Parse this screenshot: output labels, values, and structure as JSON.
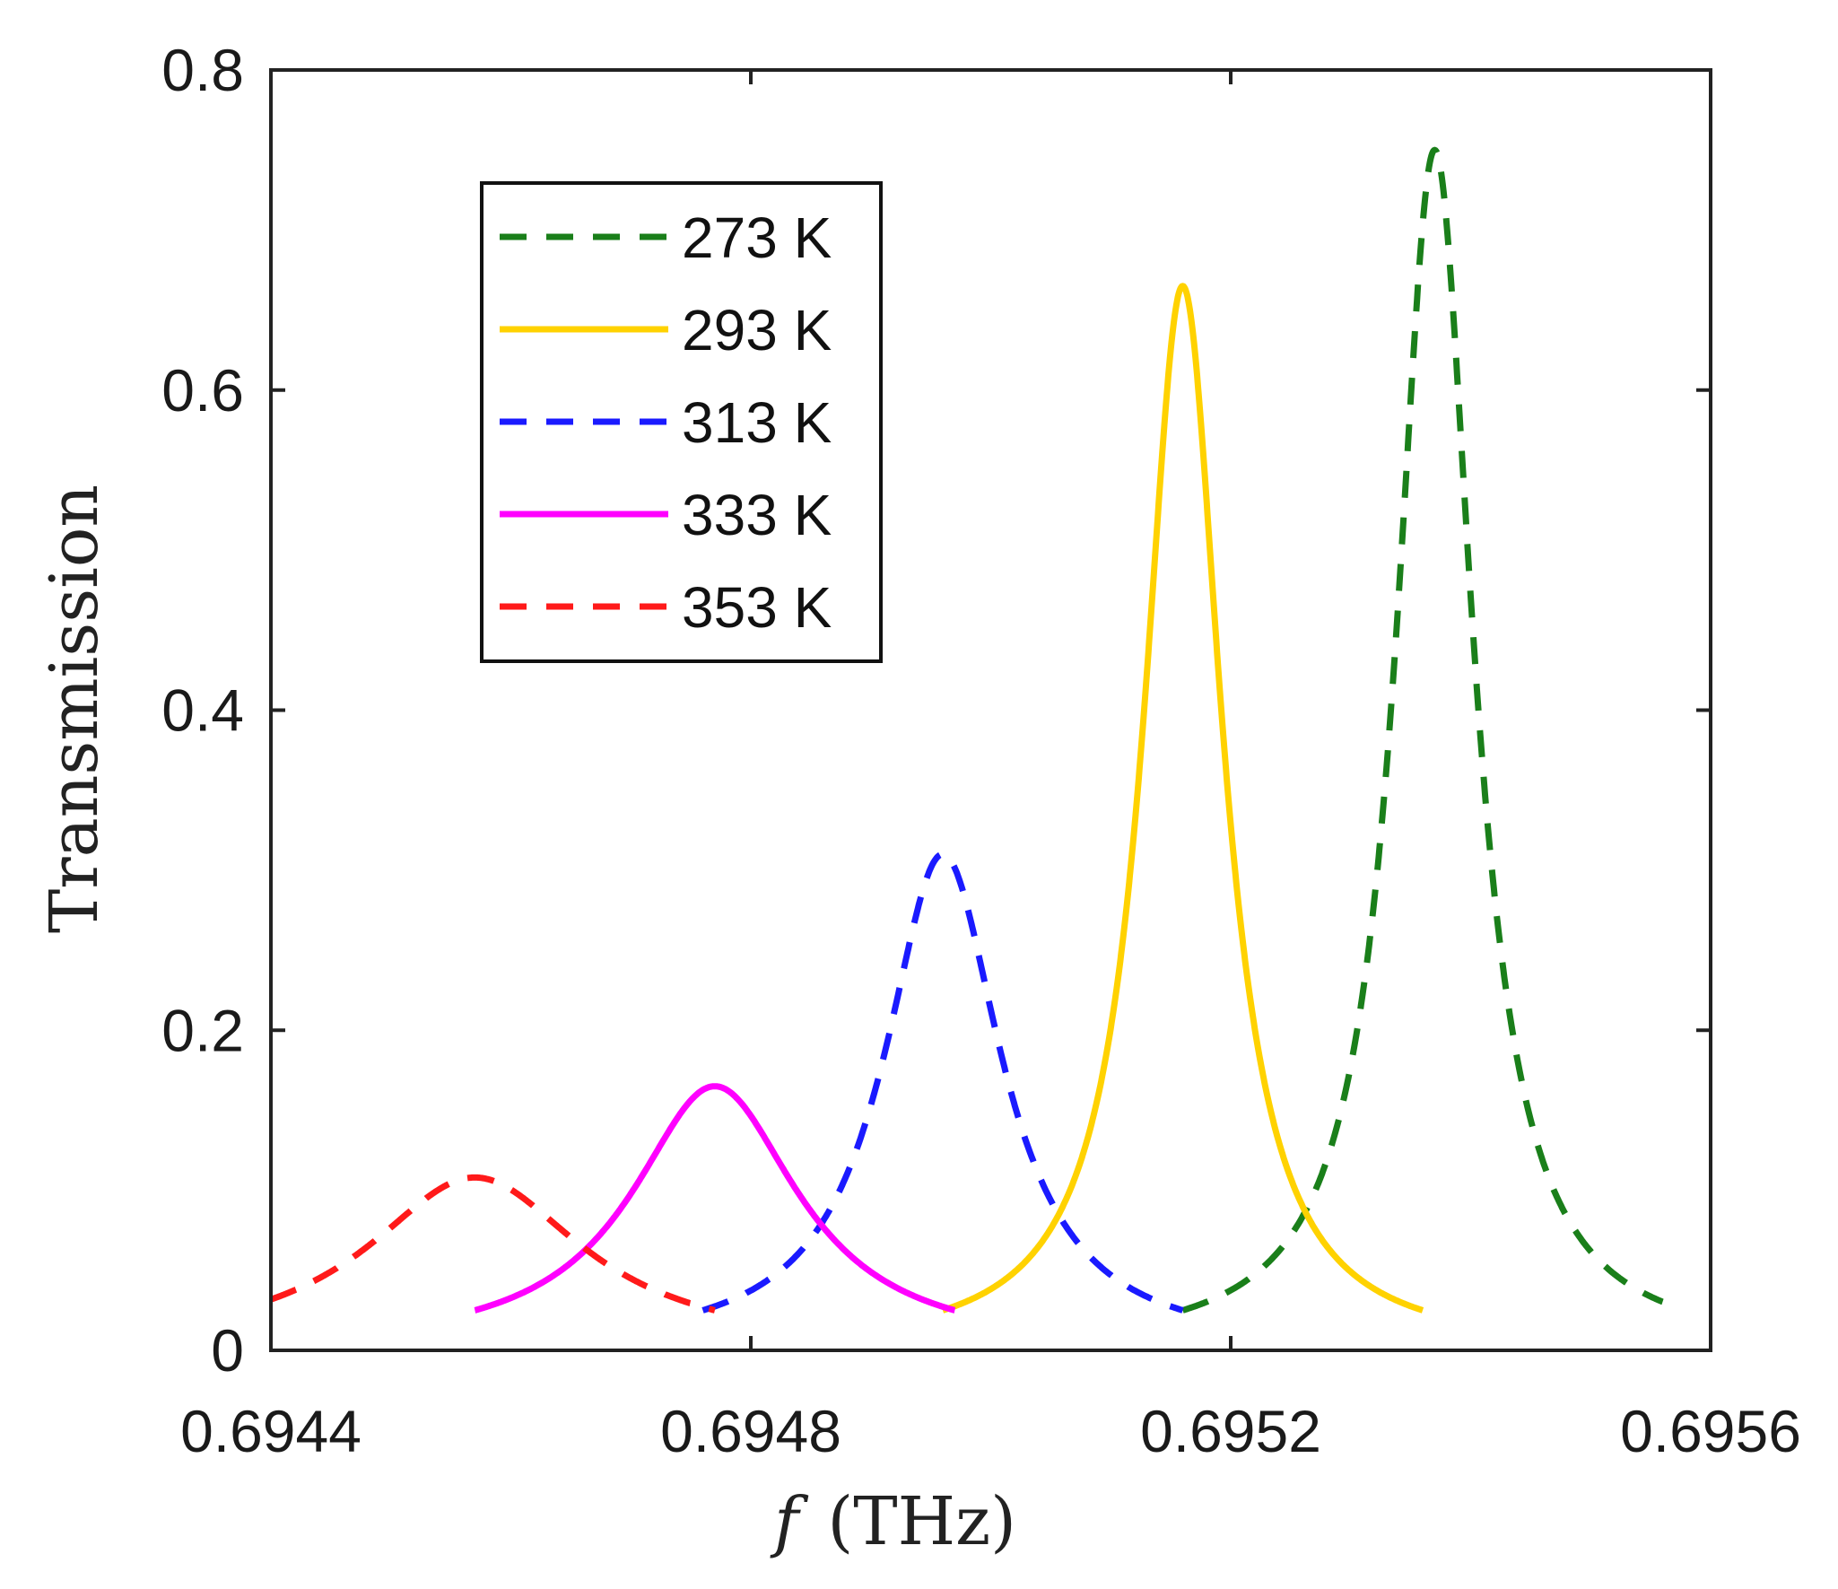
{
  "chart_data": {
    "type": "line",
    "title": "",
    "xlabel_var": "f",
    "xlabel_unit": "(THz)",
    "ylabel": "Transmission",
    "xlim": [
      0.6944,
      0.6956
    ],
    "ylim": [
      0,
      0.8
    ],
    "x_ticks": [
      0.6944,
      0.6948,
      0.6952,
      0.6956
    ],
    "x_tick_labels": [
      "0.6944",
      "0.6948",
      "0.6952",
      "0.6956"
    ],
    "y_ticks": [
      0,
      0.2,
      0.4,
      0.6,
      0.8
    ],
    "y_tick_labels": [
      "0",
      "0.2",
      "0.4",
      "0.6",
      "0.8"
    ],
    "grid": false,
    "legend_position": "top-left",
    "series": [
      {
        "name": "273 K",
        "color": "#1a7f1a",
        "style": "dashed",
        "center": 0.69537,
        "peak": 0.75,
        "base": 0.025,
        "x_range": [
          0.69516,
          0.69556
        ]
      },
      {
        "name": "293 K",
        "color": "#ffd200",
        "style": "solid",
        "center": 0.69516,
        "peak": 0.665,
        "base": 0.025,
        "x_range": [
          0.69496,
          0.69536
        ]
      },
      {
        "name": "313 K",
        "color": "#1a1aff",
        "style": "dashed",
        "center": 0.69496,
        "peak": 0.31,
        "base": 0.025,
        "x_range": [
          0.69476,
          0.69516
        ]
      },
      {
        "name": "333 K",
        "color": "#ff00ff",
        "style": "solid",
        "center": 0.69477,
        "peak": 0.165,
        "base": 0.025,
        "x_range": [
          0.69457,
          0.69497
        ]
      },
      {
        "name": "353 K",
        "color": "#ff1a1a",
        "style": "dashed",
        "center": 0.69457,
        "peak": 0.108,
        "base": 0.025,
        "x_range": [
          0.6944,
          0.69477
        ]
      }
    ]
  }
}
